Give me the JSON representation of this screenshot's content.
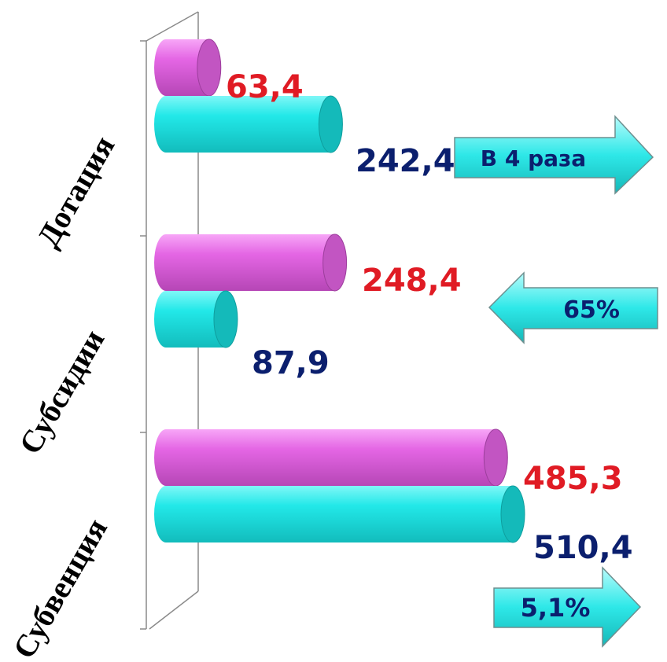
{
  "chart_data": {
    "type": "bar",
    "orientation": "horizontal",
    "categories": [
      "Дотация",
      "Субсидии",
      "Субвенция"
    ],
    "series": [
      {
        "values": [
          63.4,
          248.4,
          485.3
        ],
        "labels": [
          "63,4",
          "248,4",
          "485,3"
        ]
      },
      {
        "values": [
          242.4,
          87.9,
          510.4
        ],
        "labels": [
          "242,4",
          "87,9",
          "510,4"
        ]
      }
    ],
    "colors": {
      "series1": "#e066e0",
      "series2": "#1ee6e6",
      "label1": "#e01b24",
      "label2": "#0b1f6e",
      "arrow": "#1ee6e6"
    },
    "annotations": [
      "В 4 раза",
      "65%",
      "5,1%"
    ],
    "annotation_directions": [
      "right",
      "left",
      "right"
    ]
  }
}
